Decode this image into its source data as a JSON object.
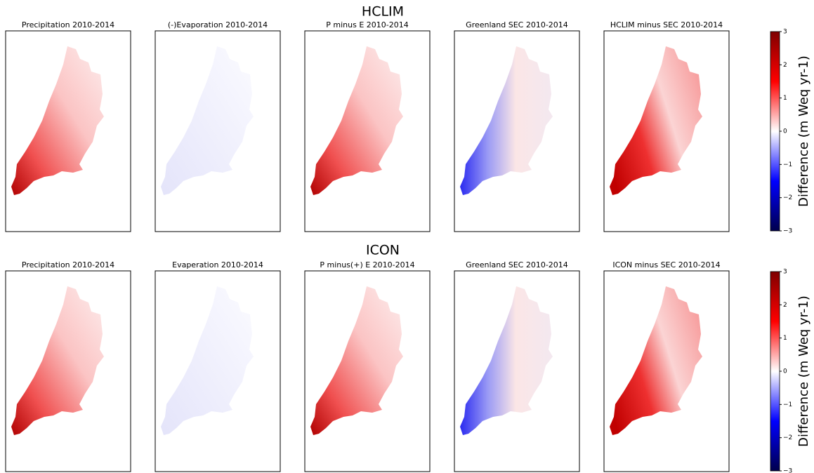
{
  "rows": [
    {
      "title": "HCLIM",
      "panels": [
        "Precipitation 2010-2014",
        "(-)Evaporation 2010-2014",
        "P minus E 2010-2014",
        "Greenland SEC 2010-2014",
        "HCLIM minus SEC 2010-2014"
      ],
      "colorbar": {
        "label": "Difference (m Weq yr-1)",
        "lim": [
          -3,
          3
        ],
        "ticks": [
          {
            "value": -3,
            "label": "−3"
          },
          {
            "value": -2,
            "label": "−2"
          },
          {
            "value": -1,
            "label": "−1"
          },
          0,
          1,
          2,
          3
        ]
      }
    },
    {
      "title": "ICON",
      "panels": [
        "Precipitation 2010-2014",
        "Evaperation 2010-2014",
        "P minus(+) E 2010-2014",
        "Greenland SEC 2010-2014",
        "ICON minus SEC 2010-2014"
      ],
      "colorbar": {
        "label": "Difference (m Weq yr-1)",
        "lim": [
          -3,
          3
        ],
        "ticks": [
          {
            "value": -3,
            "label": "−3"
          },
          {
            "value": -2,
            "label": "−2"
          },
          {
            "value": -1,
            "label": "−1"
          },
          0,
          1,
          2,
          3
        ]
      }
    }
  ]
}
